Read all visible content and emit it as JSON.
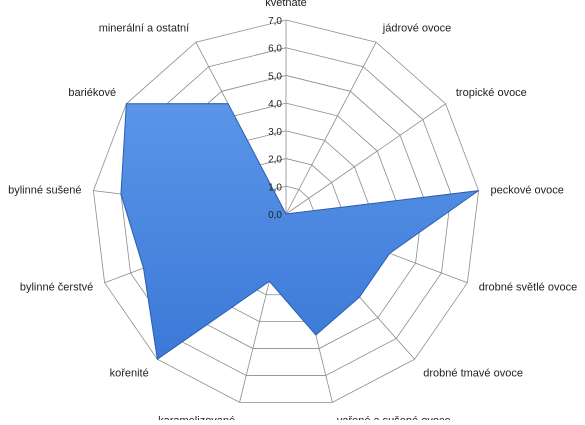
{
  "chart_data": {
    "type": "radar",
    "title": "",
    "categories": [
      "květnaté",
      "jádrové ovoce",
      "tropické ovoce",
      "peckové ovoce",
      "drobné světlé ovoce",
      "drobné tmavé ovoce",
      "vařené a sušené ovoce",
      "karamelizované",
      "kořenité",
      "bylinné čerstvé",
      "bylinné sušené",
      "bariékové",
      "minerální a ostatní"
    ],
    "series": [
      {
        "values": [
          0,
          0,
          0,
          7.0,
          4.0,
          4.0,
          4.5,
          2.5,
          7.0,
          5.5,
          6.0,
          7.0,
          4.5
        ]
      }
    ],
    "rlim": [
      0,
      7
    ],
    "tick_labels": [
      "0,0",
      "1,0",
      "2,0",
      "3,0",
      "4,0",
      "5,0",
      "6,0",
      "7,0"
    ],
    "grid": true,
    "legend": "none",
    "colors": {
      "fill": "#3b79d8",
      "fill_light": "#5b95e8",
      "stroke": "#2a5fae",
      "grid": "#8c8c8c"
    }
  }
}
